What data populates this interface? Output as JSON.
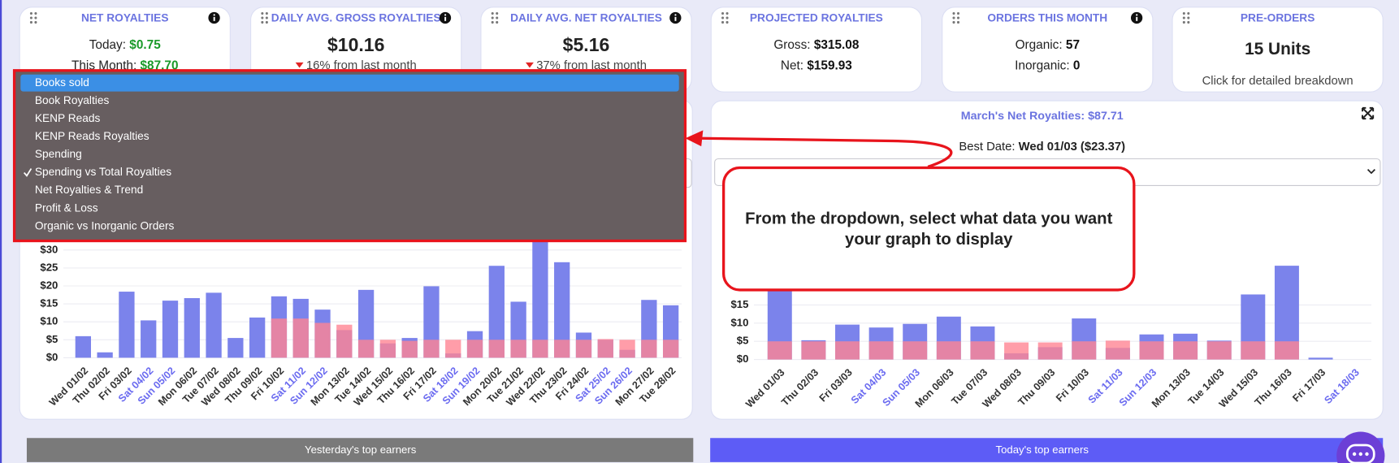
{
  "cards": [
    {
      "title": "NET ROYALTIES",
      "lines": [
        {
          "label": "Today:",
          "value": "$0.75"
        },
        {
          "label": "This Month:",
          "value": "$87.70"
        }
      ]
    },
    {
      "title": "DAILY AVG. GROSS ROYALTIES",
      "value": "$10.16",
      "change": "16% from last month"
    },
    {
      "title": "DAILY AVG. NET ROYALTIES",
      "value": "$5.16",
      "change": "37% from last month"
    },
    {
      "title": "PROJECTED ROYALTIES",
      "lines": [
        {
          "label": "Gross:",
          "value": "$315.08"
        },
        {
          "label": "Net:",
          "value": "$159.93"
        }
      ]
    },
    {
      "title": "ORDERS THIS MONTH",
      "lines": [
        {
          "label": "Organic:",
          "value": "57"
        },
        {
          "label": "Inorganic:",
          "value": "0"
        }
      ]
    },
    {
      "title": "PRE-ORDERS",
      "value": "15 Units",
      "note": "Click for detailed breakdown"
    }
  ],
  "dropdown": {
    "items": [
      {
        "label": "Books sold",
        "highlighted": true
      },
      {
        "label": "Book Royalties"
      },
      {
        "label": "KENP Reads"
      },
      {
        "label": "KENP Reads Royalties"
      },
      {
        "label": "Spending"
      },
      {
        "label": "Spending vs Total Royalties",
        "checked": true
      },
      {
        "label": "Net Royalties & Trend"
      },
      {
        "label": "Profit & Loss"
      },
      {
        "label": "Organic vs Inorganic Orders"
      }
    ]
  },
  "right_panel": {
    "title_label": "March's Net Royalties:",
    "title_value": "$87.71",
    "best_label": "Best Date:",
    "best_value": "Wed 01/03 ($23.37)"
  },
  "callout": [
    "From the dropdown, select what data you want",
    "your graph to display"
  ],
  "buttons": [
    "Yesterday's top earners",
    "Today's top earners"
  ],
  "chart_data": [
    {
      "type": "bar",
      "categories": [
        "Wed 01/02",
        "Thu 02/02",
        "Fri 03/02",
        "Sat 04/02",
        "Sun 05/02",
        "Mon 06/02",
        "Tue 07/02",
        "Wed 08/02",
        "Thu 09/02",
        "Fri 10/02",
        "Sat 11/02",
        "Sun 12/02",
        "Mon 13/02",
        "Tue 14/02",
        "Wed 15/02",
        "Thu 16/02",
        "Fri 17/02",
        "Sat 18/02",
        "Sun 19/02",
        "Mon 20/02",
        "Tue 21/02",
        "Wed 22/02",
        "Thu 23/02",
        "Fri 24/02",
        "Sat 25/02",
        "Sun 26/02",
        "Mon 27/02",
        "Tue 28/02"
      ],
      "category_colors": [
        "#333",
        "#333",
        "#333",
        "#6b6bf0",
        "#6b6bf0",
        "#333",
        "#333",
        "#333",
        "#333",
        "#333",
        "#6b6bf0",
        "#6b6bf0",
        "#333",
        "#333",
        "#333",
        "#333",
        "#333",
        "#6b6bf0",
        "#6b6bf0",
        "#333",
        "#333",
        "#333",
        "#333",
        "#333",
        "#6b6bf0",
        "#6b6bf0",
        "#333",
        "#333"
      ],
      "series": [
        {
          "color": "#7b83eb",
          "values": [
            6,
            1.5,
            18.4,
            10.4,
            15.9,
            16.6,
            18.1,
            5.5,
            11.2,
            17.1,
            16.4,
            13.4,
            7.7,
            18.9,
            4,
            5.5,
            19.9,
            1.2,
            7.4,
            25.6,
            15.6,
            38,
            26.6,
            7,
            5,
            2.2,
            16.1,
            14.6
          ]
        },
        {
          "color": "#ff8593",
          "values": [
            0,
            0,
            0,
            0,
            0,
            0,
            0,
            0,
            0,
            10.9,
            10.9,
            9.7,
            9.2,
            5,
            5,
            4.7,
            5,
            5,
            5,
            5,
            5,
            5,
            5,
            5,
            5.2,
            5,
            5,
            5
          ]
        }
      ],
      "ylim": [
        0,
        40
      ],
      "yticks": [
        {
          "value": 0,
          "label": "$0"
        },
        {
          "value": 5,
          "label": "$5"
        },
        {
          "value": 10,
          "label": "$10"
        },
        {
          "value": 15,
          "label": "$15"
        },
        {
          "value": 20,
          "label": "$20"
        },
        {
          "value": 25,
          "label": "$25"
        },
        {
          "value": 30,
          "label": "$30"
        }
      ],
      "grid": true
    },
    {
      "type": "bar",
      "categories": [
        "Wed 01/03",
        "Thu 02/03",
        "Fri 03/03",
        "Sat 04/03",
        "Sun 05/03",
        "Mon 06/03",
        "Tue 07/03",
        "Wed 08/03",
        "Thu 09/03",
        "Fri 10/03",
        "Sat 11/03",
        "Sun 12/03",
        "Mon 13/03",
        "Tue 14/03",
        "Wed 15/03",
        "Thu 16/03",
        "Fri 17/03",
        "Sat 18/03"
      ],
      "category_colors": [
        "#333",
        "#333",
        "#333",
        "#6b6bf0",
        "#6b6bf0",
        "#333",
        "#333",
        "#333",
        "#333",
        "#333",
        "#6b6bf0",
        "#6b6bf0",
        "#333",
        "#333",
        "#333",
        "#333",
        "#333",
        "#6b6bf0"
      ],
      "series": [
        {
          "color": "#7b83eb",
          "values": [
            22,
            5.3,
            9.6,
            8.8,
            9.8,
            11.8,
            9.1,
            1.7,
            3.4,
            11.3,
            3.2,
            6.9,
            7.1,
            5.2,
            17.9,
            25.8,
            0.5,
            0
          ]
        },
        {
          "color": "#ff8593",
          "values": [
            5,
            5,
            5,
            5,
            5,
            5,
            5,
            4.7,
            4.7,
            5,
            5.2,
            5,
            5,
            5,
            5,
            5,
            0,
            0
          ]
        }
      ],
      "ylim": [
        0,
        40
      ],
      "yticks": [
        {
          "value": 0,
          "label": "$0"
        },
        {
          "value": 5,
          "label": "$5"
        },
        {
          "value": 10,
          "label": "$10"
        },
        {
          "value": 15,
          "label": "$15"
        }
      ],
      "grid": true
    }
  ]
}
